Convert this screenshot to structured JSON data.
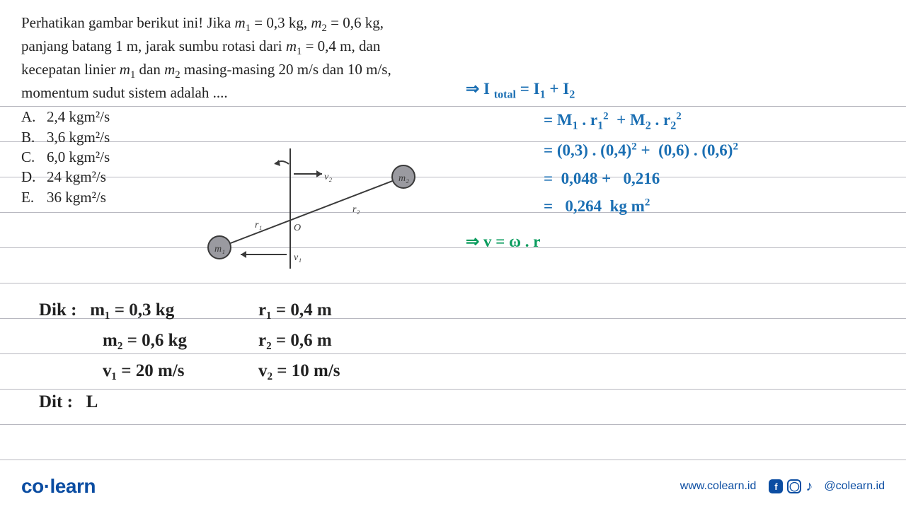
{
  "problem": {
    "text_html": "Perhatikan gambar berikut ini! Jika <i>m</i><sub>1</sub> = 0,3 kg, <i>m</i><sub>2</sub> = 0,6 kg, panjang batang 1 m, jarak sumbu rotasi dari <i>m</i><sub>1</sub> = 0,4 m, dan kecepatan linier <i>m</i><sub>1</sub> dan <i>m</i><sub>2</sub> masing-masing 20 m/s dan 10 m/s, momentum sudut sistem adalah ....",
    "options": [
      {
        "letter": "A.",
        "value": "2,4 kgm²/s"
      },
      {
        "letter": "B.",
        "value": "3,6 kgm²/s"
      },
      {
        "letter": "C.",
        "value": "6,0 kgm²/s"
      },
      {
        "letter": "D.",
        "value": "24 kgm²/s"
      },
      {
        "letter": "E.",
        "value": "36 kgm²/s"
      }
    ]
  },
  "diagram": {
    "m1_label": "m₁",
    "m2_label": "m₂",
    "r1_label": "r₁",
    "r2_label": "r₂",
    "v1_label": "v₁",
    "v2_label": "v₂",
    "O_label": "O",
    "colors": {
      "stroke": "#3a3a3a",
      "fill_mass": "#9a9aa0"
    }
  },
  "work_right": {
    "lines": [
      "⇒ I total = I₁ + I₂",
      "= M₁ . r₁² + M₂ . r₂²",
      "= (0,3) . (0,4)² + (0,6) . (0,6)²",
      "= 0,048 + 0,216",
      "= 0,264 kg m²"
    ],
    "green_line": "⇒ v = ω . r",
    "color_blue": "#1b6fb3",
    "color_green": "#0a9c5e"
  },
  "work_bottom": {
    "dik_label": "Dik :",
    "dit_label": "Dit :",
    "dit_value": "L",
    "rows": [
      {
        "c1": "m₁ = 0,3 kg",
        "c2": "r₁ = 0,4 m"
      },
      {
        "c1": "m₂ = 0,6 kg",
        "c2": "r₂ = 0,6 m"
      },
      {
        "c1": "v₁ = 20 m/s",
        "c2": "v₂ = 10 m/s"
      }
    ]
  },
  "footer": {
    "logo_co": "co",
    "logo_learn": "learn",
    "url": "www.colearn.id",
    "handle": "@colearn.id"
  },
  "ruled_line_positions": [
    150,
    200,
    250,
    300,
    350,
    400,
    450,
    500,
    550,
    600,
    650
  ],
  "ruled_line_color": "#b8b8c0"
}
